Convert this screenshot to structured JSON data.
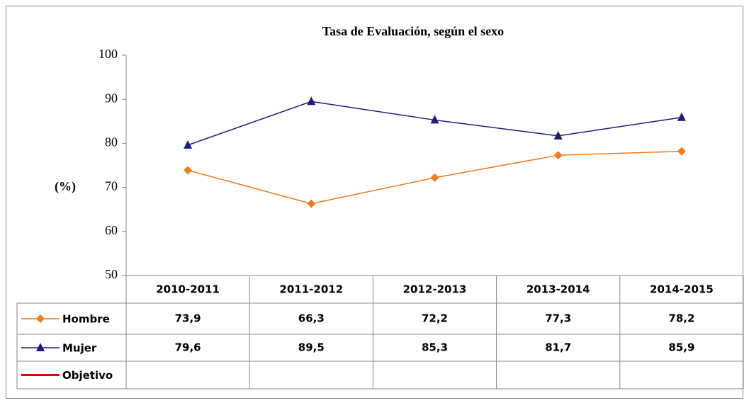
{
  "chart_data": {
    "type": "line",
    "title": "Tasa de Evaluación, según el sexo",
    "ylabel": "(%)",
    "categories": [
      "2010-2011",
      "2011-2012",
      "2012-2013",
      "2013-2014",
      "2014-2015"
    ],
    "series": [
      {
        "name": "Hombre",
        "color": "#f07b1c",
        "marker": "diamond",
        "values": [
          73.9,
          66.3,
          72.2,
          77.3,
          78.2
        ],
        "value_labels": [
          "73,9",
          "66,3",
          "72,2",
          "77,3",
          "78,2"
        ]
      },
      {
        "name": "Mujer",
        "color": "#1c1c80",
        "marker": "triangle",
        "values": [
          79.6,
          89.5,
          85.3,
          81.7,
          85.9
        ],
        "value_labels": [
          "79,6",
          "89,5",
          "85,3",
          "81,7",
          "85,9"
        ]
      },
      {
        "name": "Objetivo",
        "color": "#e00000",
        "values": [
          null,
          null,
          null,
          null,
          null
        ]
      }
    ],
    "ylim": [
      50,
      100
    ],
    "yticks": [
      50,
      60,
      70,
      80,
      90,
      100
    ],
    "grid": false,
    "data_table": true
  }
}
